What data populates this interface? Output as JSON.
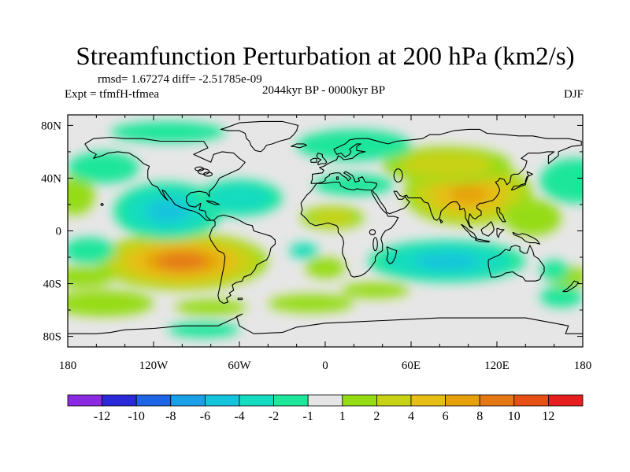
{
  "title": "Streamfunction Perturbation at 200 hPa (km2/s)",
  "stats": "rmsd= 1.67274 diff= -2.51785e-09",
  "experiment": "Expt = tfmfH-tfmea",
  "period": "2044kyr BP - 0000kyr BP",
  "season": "DJF",
  "chart_data": {
    "type": "contour-map",
    "projection": "cylindrical-equidistant",
    "lon_range": [
      -180,
      180
    ],
    "lat_range": [
      -90,
      90
    ],
    "lat_ticks": [
      {
        "value": 80,
        "label": "80N"
      },
      {
        "value": 40,
        "label": "40N"
      },
      {
        "value": 0,
        "label": "0"
      },
      {
        "value": -40,
        "label": "40S"
      },
      {
        "value": -80,
        "label": "80S"
      }
    ],
    "lon_ticks": [
      {
        "value": -180,
        "label": "180"
      },
      {
        "value": -120,
        "label": "120W"
      },
      {
        "value": -60,
        "label": "60W"
      },
      {
        "value": 0,
        "label": "0"
      },
      {
        "value": 60,
        "label": "60E"
      },
      {
        "value": 120,
        "label": "120E"
      },
      {
        "value": 180,
        "label": "180"
      }
    ],
    "levels": [
      -12,
      -10,
      -8,
      -6,
      -4,
      -2,
      -1,
      1,
      2,
      4,
      6,
      8,
      10,
      12
    ],
    "colorbar_labels": [
      "-12",
      "-10",
      "-8",
      "-6",
      "-4",
      "-2",
      "-1",
      "1",
      "2",
      "4",
      "6",
      "8",
      "10",
      "12"
    ],
    "colors": [
      "#8a2be2",
      "#2a2ad8",
      "#1e64e6",
      "#1aa0e6",
      "#14c4dc",
      "#14dcc0",
      "#1ee69a",
      "#e6e6e6",
      "#96dc14",
      "#c8d214",
      "#e6be14",
      "#e6a00a",
      "#e67814",
      "#e65014",
      "#e61e1e"
    ],
    "features": [
      {
        "lon": -100,
        "lat": -23,
        "value": 8,
        "w": 60,
        "h": 22
      },
      {
        "lon": 100,
        "lat": 28,
        "value": 6,
        "w": 45,
        "h": 24
      },
      {
        "lon": 85,
        "lat": 50,
        "value": 2.5,
        "w": 45,
        "h": 14
      },
      {
        "lon": 5,
        "lat": 10,
        "value": 2,
        "w": 22,
        "h": 9
      },
      {
        "lon": 0,
        "lat": -28,
        "value": 1.5,
        "w": 14,
        "h": 8
      },
      {
        "lon": -170,
        "lat": -35,
        "value": 1.5,
        "w": 22,
        "h": 8
      },
      {
        "lon": 170,
        "lat": -35,
        "value": 1.5,
        "w": 14,
        "h": 8
      },
      {
        "lon": -175,
        "lat": 27,
        "value": 1.5,
        "w": 14,
        "h": 15
      },
      {
        "lon": -155,
        "lat": -55,
        "value": 1.5,
        "w": 35,
        "h": 10
      },
      {
        "lon": -10,
        "lat": -55,
        "value": 1.5,
        "w": 30,
        "h": 7
      },
      {
        "lon": -80,
        "lat": -58,
        "value": 1.5,
        "w": 25,
        "h": 6
      },
      {
        "lon": 35,
        "lat": -45,
        "value": 1.5,
        "w": 24,
        "h": 6
      },
      {
        "lon": 145,
        "lat": 10,
        "value": 1.5,
        "w": 20,
        "h": 14
      },
      {
        "lon": -110,
        "lat": 15,
        "value": -4,
        "w": 38,
        "h": 22
      },
      {
        "lon": -60,
        "lat": 25,
        "value": -3,
        "w": 30,
        "h": 14
      },
      {
        "lon": 85,
        "lat": -23,
        "value": -4,
        "w": 55,
        "h": 16
      },
      {
        "lon": -110,
        "lat": 75,
        "value": -1.5,
        "w": 40,
        "h": 8
      },
      {
        "lon": 20,
        "lat": 65,
        "value": -1.5,
        "w": 40,
        "h": 12
      },
      {
        "lon": -155,
        "lat": 48,
        "value": -1.5,
        "w": 25,
        "h": 12
      },
      {
        "lon": 175,
        "lat": 38,
        "value": -1.5,
        "w": 25,
        "h": 17
      },
      {
        "lon": 20,
        "lat": 35,
        "value": -1.5,
        "w": 28,
        "h": 8
      },
      {
        "lon": -15,
        "lat": -15,
        "value": -3,
        "w": 10,
        "h": 6
      },
      {
        "lon": -165,
        "lat": -15,
        "value": -1.5,
        "w": 18,
        "h": 10
      },
      {
        "lon": -85,
        "lat": -75,
        "value": -1.5,
        "w": 25,
        "h": 6
      },
      {
        "lon": 165,
        "lat": -50,
        "value": -1.5,
        "w": 15,
        "h": 8
      },
      {
        "lon": 160,
        "lat": -30,
        "value": -1.5,
        "w": 10,
        "h": 8
      }
    ]
  }
}
